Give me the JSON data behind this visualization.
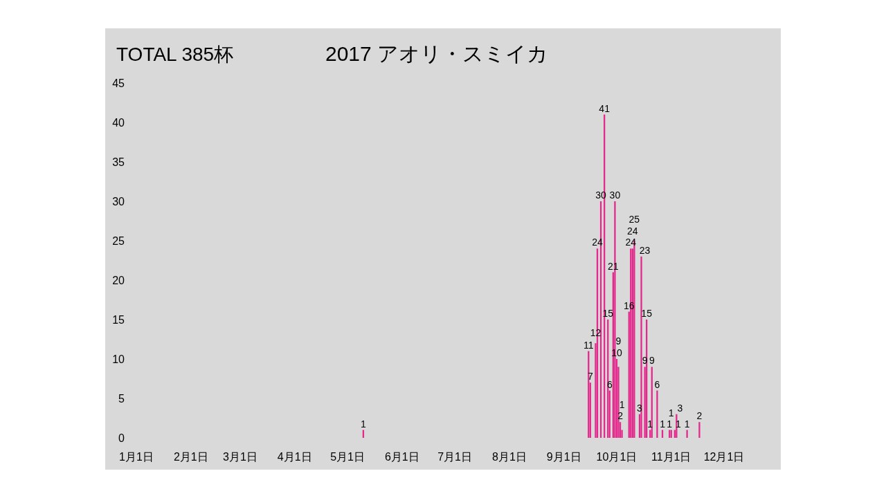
{
  "chart_data": {
    "type": "bar",
    "title": "2017 アオリ・スミイカ",
    "annotations": [
      "TOTAL 385杯"
    ],
    "x": [
      "2017-05-10",
      "2017-09-15",
      "2017-09-16",
      "2017-09-19",
      "2017-09-20",
      "2017-09-22",
      "2017-09-24",
      "2017-09-26",
      "2017-09-27",
      "2017-09-29",
      "2017-09-30",
      "2017-10-01",
      "2017-10-02",
      "2017-10-03",
      "2017-10-04",
      "2017-10-08",
      "2017-10-09",
      "2017-10-10",
      "2017-10-11",
      "2017-10-14",
      "2017-10-15",
      "2017-10-17",
      "2017-10-18",
      "2017-10-20",
      "2017-10-21",
      "2017-10-24",
      "2017-10-27",
      "2017-10-31",
      "2017-11-01",
      "2017-11-03",
      "2017-11-04",
      "2017-11-10",
      "2017-11-17"
    ],
    "series": [
      {
        "color": "#e2298c",
        "values": [
          1,
          11,
          7,
          12,
          24,
          30,
          41,
          15,
          6,
          21,
          30,
          10,
          9,
          2,
          1,
          16,
          24,
          24,
          25,
          3,
          23,
          9,
          15,
          1,
          9,
          6,
          1,
          1,
          1,
          1,
          3,
          1,
          2
        ]
      }
    ],
    "data_labels": true,
    "xlim": [
      "2017-01-01",
      "2017-12-01"
    ],
    "xticks": [
      {
        "value": "2017-01-01",
        "label": "1月1日"
      },
      {
        "value": "2017-02-01",
        "label": "2月1日"
      },
      {
        "value": "2017-03-01",
        "label": "3月1日"
      },
      {
        "value": "2017-04-01",
        "label": "4月1日"
      },
      {
        "value": "2017-05-01",
        "label": "5月1日"
      },
      {
        "value": "2017-06-01",
        "label": "6月1日"
      },
      {
        "value": "2017-07-01",
        "label": "7月1日"
      },
      {
        "value": "2017-08-01",
        "label": "8月1日"
      },
      {
        "value": "2017-09-01",
        "label": "9月1日"
      },
      {
        "value": "2017-10-01",
        "label": "10月1日"
      },
      {
        "value": "2017-11-01",
        "label": "11月1日"
      },
      {
        "value": "2017-12-01",
        "label": "12月1日"
      }
    ],
    "ylim": [
      0,
      45
    ],
    "yticks": [
      0,
      5,
      10,
      15,
      20,
      25,
      30,
      35,
      40,
      45
    ],
    "grid": false
  }
}
